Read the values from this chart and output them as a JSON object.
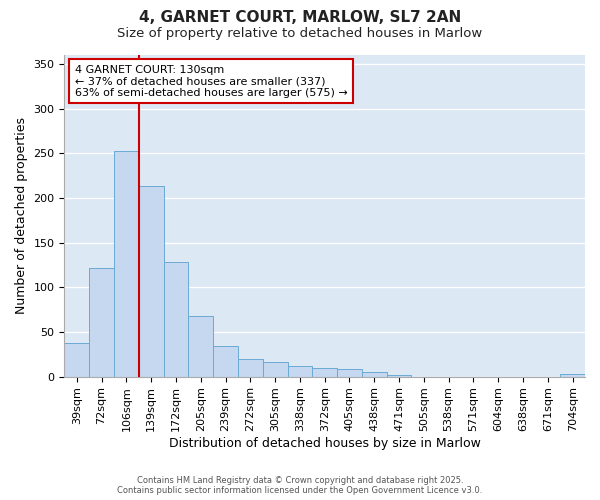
{
  "title": "4, GARNET COURT, MARLOW, SL7 2AN",
  "subtitle": "Size of property relative to detached houses in Marlow",
  "xlabel": "Distribution of detached houses by size in Marlow",
  "ylabel": "Number of detached properties",
  "bar_labels": [
    "39sqm",
    "72sqm",
    "106sqm",
    "139sqm",
    "172sqm",
    "205sqm",
    "239sqm",
    "272sqm",
    "305sqm",
    "338sqm",
    "372sqm",
    "405sqm",
    "438sqm",
    "471sqm",
    "505sqm",
    "538sqm",
    "571sqm",
    "604sqm",
    "638sqm",
    "671sqm",
    "704sqm"
  ],
  "bar_values": [
    38,
    122,
    252,
    213,
    128,
    68,
    34,
    20,
    16,
    12,
    10,
    9,
    5,
    2,
    0,
    0,
    0,
    0,
    0,
    0,
    3
  ],
  "bar_color": "#c5d8f0",
  "bar_edge_color": "#6aaad4",
  "background_color": "#dde8f5",
  "plot_bg_color": "#ffffff",
  "grid_color": "#e8f0f8",
  "vline_x": 2.5,
  "vline_color": "#cc0000",
  "annotation_text": "4 GARNET COURT: 130sqm\n← 37% of detached houses are smaller (337)\n63% of semi-detached houses are larger (575) →",
  "annotation_box_edgecolor": "#cc0000",
  "annotation_box_facecolor": "#ffffff",
  "ylim": [
    0,
    360
  ],
  "yticks": [
    0,
    50,
    100,
    150,
    200,
    250,
    300,
    350
  ],
  "title_fontsize": 11,
  "subtitle_fontsize": 9.5,
  "label_fontsize": 9,
  "tick_fontsize": 8,
  "annot_fontsize": 8,
  "footer_fontsize": 6
}
